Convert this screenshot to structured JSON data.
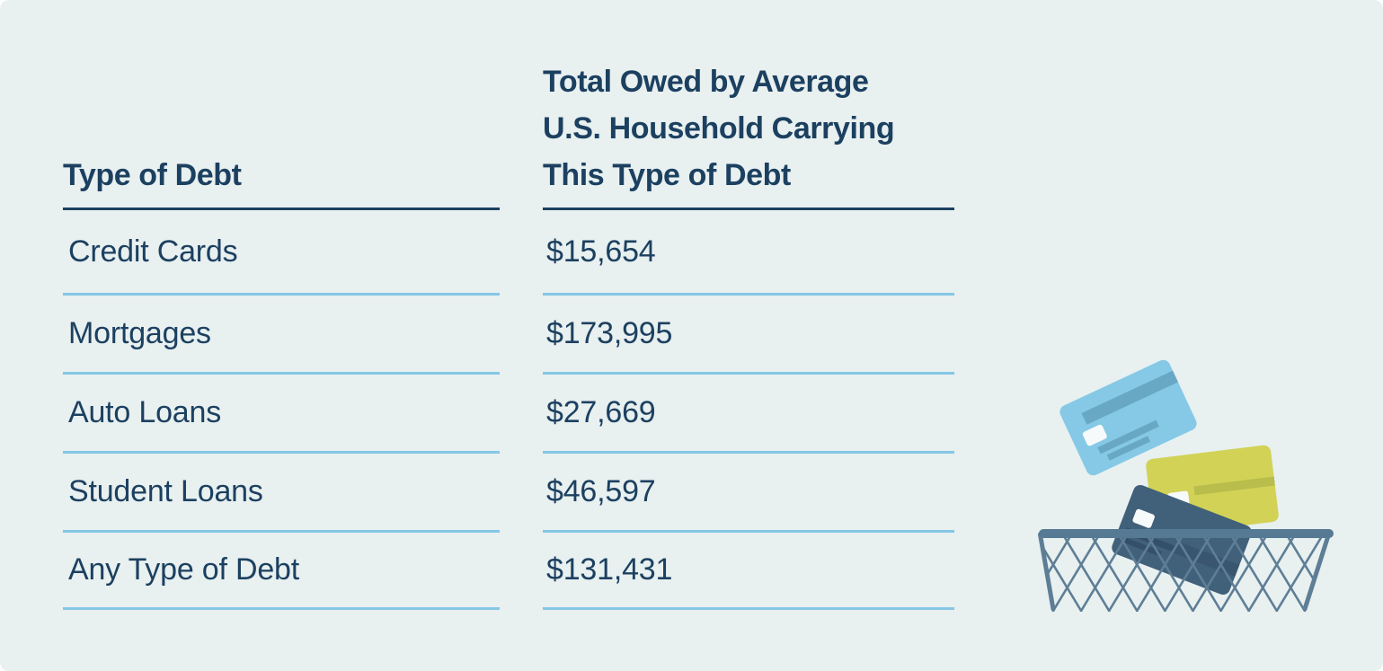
{
  "colors": {
    "background": "#e8f0f0",
    "text-navy": "#1c4060",
    "rule-navy": "#1c4060",
    "divider-blue": "#85c7e5",
    "card-blue": "#85c9e6",
    "card-blue-detail": "#68a8c5",
    "card-yellow": "#d2d257",
    "card-yellow-detail": "#b9bd4b",
    "card-dark": "#41607a",
    "card-dark-detail": "#344f69",
    "card-dark-band": "#3a566f",
    "basket-wire": "#5e7e96",
    "basket-rim": "#567a93",
    "chip-white": "#f7fafb"
  },
  "chart_data": {
    "type": "table",
    "columns": [
      "Type of Debt",
      "Total Owed by Average U.S. Household Carrying This Type of Debt"
    ],
    "column_line_breaks": [
      [
        "Type of Debt"
      ],
      [
        "Total Owed by Average",
        "U.S. Household Carrying",
        "This Type of Debt"
      ]
    ],
    "rows": [
      {
        "label": "Credit Cards",
        "value": 15654,
        "value_display": "$15,654"
      },
      {
        "label": "Mortgages",
        "value": 173995,
        "value_display": "$173,995"
      },
      {
        "label": "Auto Loans",
        "value": 27669,
        "value_display": "$27,669"
      },
      {
        "label": "Student Loans",
        "value": 46597,
        "value_display": "$46,597"
      },
      {
        "label": "Any Type of Debt",
        "value": 131431,
        "value_display": "$131,431"
      }
    ]
  },
  "illustration": {
    "description": "three credit cards falling into a wire mesh basket",
    "items": [
      "credit-card-blue",
      "credit-card-yellow",
      "credit-card-dark",
      "wire-basket"
    ]
  }
}
